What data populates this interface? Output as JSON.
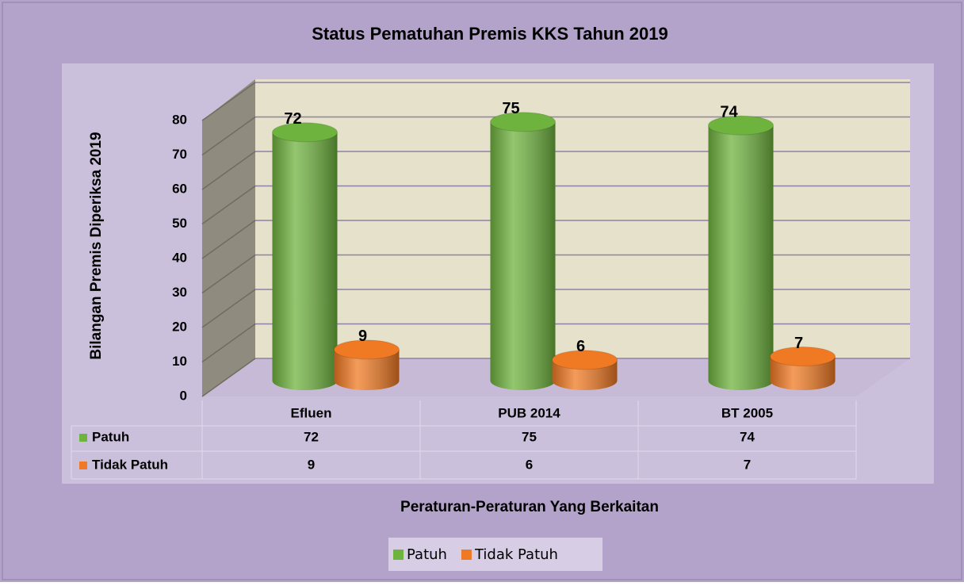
{
  "chart_data": {
    "type": "bar3d",
    "title": "Status Pematuhan Premis KKS Tahun 2019",
    "y_axis_label": "Bilangan Premis Diperiksa 2019",
    "x_axis_label": "Peraturan-Peraturan Yang Berkaitan",
    "categories": [
      "Efluen",
      "PUB 2014",
      "BT 2005"
    ],
    "series": [
      {
        "name": "Patuh",
        "color": "#6fb33f",
        "values": [
          72,
          75,
          74
        ]
      },
      {
        "name": "Tidak Patuh",
        "color": "#f07a24",
        "values": [
          9,
          6,
          7
        ]
      }
    ],
    "ylim": [
      0,
      80
    ],
    "yticks": [
      0,
      10,
      20,
      30,
      40,
      50,
      60,
      70,
      80
    ],
    "grid": true,
    "legend": "bottom"
  }
}
